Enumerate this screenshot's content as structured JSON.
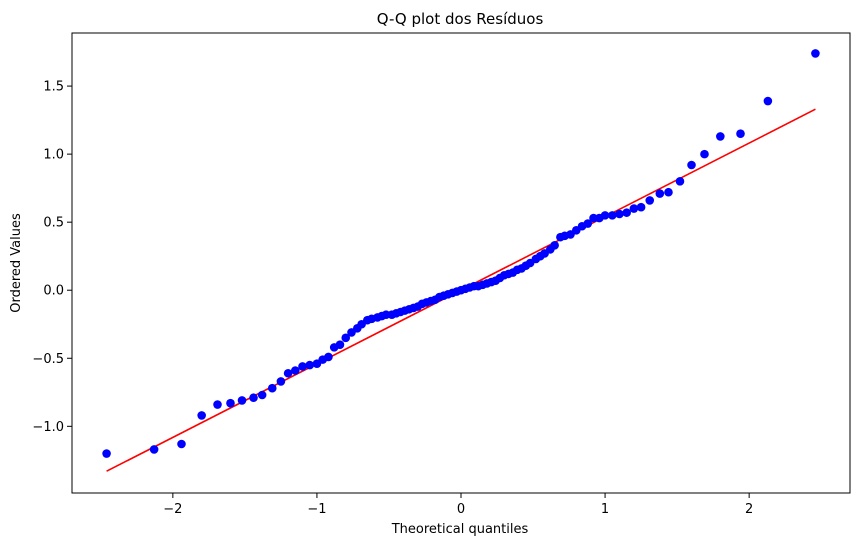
{
  "chart_data": {
    "type": "scatter",
    "title": "Q-Q plot dos Resíduos",
    "xlabel": "Theoretical quantiles",
    "ylabel": "Ordered Values",
    "xlim": [
      -2.7,
      2.7
    ],
    "ylim": [
      -1.49,
      1.89
    ],
    "xticks": [
      -2,
      -1,
      0,
      1,
      2
    ],
    "xtick_labels": [
      "−2",
      "−1",
      "0",
      "1",
      "2"
    ],
    "yticks": [
      -1.0,
      -0.5,
      0.0,
      0.5,
      1.0,
      1.5
    ],
    "ytick_labels": [
      "−1.0",
      "−0.5",
      "0.0",
      "0.5",
      "1.0",
      "1.5"
    ],
    "grid": false,
    "colors": {
      "points": "#0000ff",
      "line": "#ff0000"
    },
    "points": {
      "x": [
        -2.46,
        -2.13,
        -1.94,
        -1.8,
        -1.69,
        -1.6,
        -1.52,
        -1.44,
        -1.38,
        -1.31,
        -1.25,
        -1.2,
        -1.15,
        -1.1,
        -1.05,
        -1.0,
        -0.96,
        -0.92,
        -0.88,
        -0.84,
        -0.8,
        -0.76,
        -0.72,
        -0.69,
        -0.65,
        -0.62,
        -0.58,
        -0.55,
        -0.52,
        -0.48,
        -0.45,
        -0.42,
        -0.39,
        -0.36,
        -0.33,
        -0.3,
        -0.27,
        -0.24,
        -0.21,
        -0.18,
        -0.15,
        -0.12,
        -0.09,
        -0.06,
        -0.03,
        0.0,
        0.03,
        0.06,
        0.09,
        0.12,
        0.15,
        0.18,
        0.21,
        0.24,
        0.27,
        0.3,
        0.33,
        0.36,
        0.39,
        0.42,
        0.45,
        0.48,
        0.52,
        0.55,
        0.58,
        0.62,
        0.65,
        0.69,
        0.72,
        0.76,
        0.8,
        0.84,
        0.88,
        0.92,
        0.96,
        1.0,
        1.05,
        1.1,
        1.15,
        1.2,
        1.25,
        1.31,
        1.38,
        1.44,
        1.52,
        1.6,
        1.69,
        1.8,
        1.94,
        2.13,
        2.46
      ],
      "y": [
        -1.2,
        -1.17,
        -1.13,
        -0.92,
        -0.84,
        -0.83,
        -0.81,
        -0.79,
        -0.77,
        -0.72,
        -0.67,
        -0.61,
        -0.59,
        -0.56,
        -0.55,
        -0.54,
        -0.51,
        -0.49,
        -0.42,
        -0.4,
        -0.35,
        -0.31,
        -0.28,
        -0.25,
        -0.22,
        -0.21,
        -0.2,
        -0.19,
        -0.18,
        -0.18,
        -0.17,
        -0.16,
        -0.15,
        -0.14,
        -0.13,
        -0.12,
        -0.1,
        -0.09,
        -0.08,
        -0.07,
        -0.05,
        -0.04,
        -0.03,
        -0.02,
        -0.01,
        0.0,
        0.01,
        0.02,
        0.03,
        0.03,
        0.04,
        0.05,
        0.06,
        0.07,
        0.09,
        0.11,
        0.12,
        0.13,
        0.15,
        0.16,
        0.18,
        0.2,
        0.23,
        0.25,
        0.27,
        0.3,
        0.33,
        0.39,
        0.4,
        0.41,
        0.44,
        0.47,
        0.49,
        0.53,
        0.53,
        0.55,
        0.55,
        0.56,
        0.57,
        0.6,
        0.61,
        0.66,
        0.71,
        0.72,
        0.8,
        0.92,
        1.0,
        1.13,
        1.15,
        1.39,
        1.74
      ]
    },
    "fit_line": {
      "x": [
        -2.46,
        2.46
      ],
      "y": [
        -1.33,
        1.33
      ]
    }
  }
}
